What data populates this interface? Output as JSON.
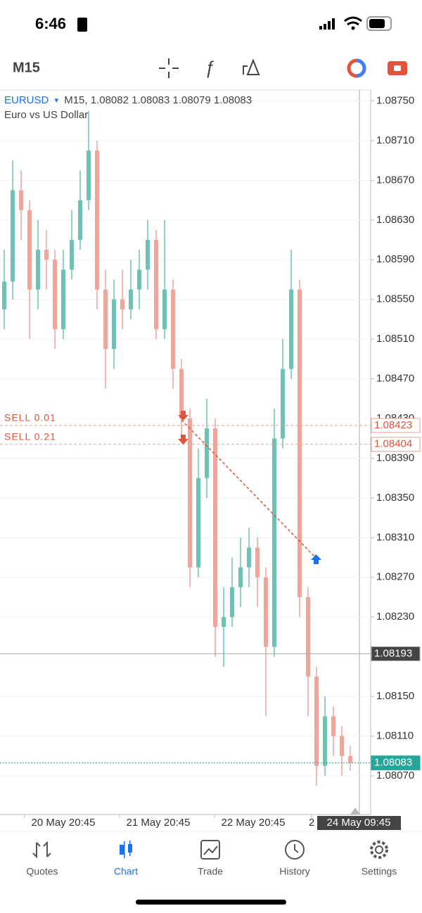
{
  "status_bar": {
    "time": "6:46"
  },
  "toolbar": {
    "timeframe": "M15"
  },
  "chart": {
    "symbol": "EURUSD",
    "symbol_menu": "▾",
    "quote_line": "M15, 1.08082 1.08083 1.08079 1.08083",
    "description": "Euro vs US Dollar",
    "ylim": [
      1.08031,
      1.08761
    ],
    "yticks": [
      {
        "value": 1.0875,
        "label": "1.08750"
      },
      {
        "value": 1.0871,
        "label": "1.08710"
      },
      {
        "value": 1.0867,
        "label": "1.08670"
      },
      {
        "value": 1.0863,
        "label": "1.08630"
      },
      {
        "value": 1.0859,
        "label": "1.08590"
      },
      {
        "value": 1.0855,
        "label": "1.08550"
      },
      {
        "value": 1.0851,
        "label": "1.08510"
      },
      {
        "value": 1.0847,
        "label": "1.08470"
      },
      {
        "value": 1.0843,
        "label": "1.08430"
      },
      {
        "value": 1.0839,
        "label": "1.08390"
      },
      {
        "value": 1.0835,
        "label": "1.08350"
      },
      {
        "value": 1.0831,
        "label": "1.08310"
      },
      {
        "value": 1.0827,
        "label": "1.08270"
      },
      {
        "value": 1.0823,
        "label": "1.08230"
      },
      {
        "value": 1.0815,
        "label": "1.08150"
      },
      {
        "value": 1.0811,
        "label": "1.08110"
      },
      {
        "value": 1.0807,
        "label": "1.08070"
      }
    ],
    "orders": [
      {
        "label": "SELL 0.01",
        "price": {
          "value": 1.08423,
          "label": "1.08423"
        }
      },
      {
        "label": "SELL 0.21",
        "price": {
          "value": 1.08404,
          "label": "1.08404"
        }
      }
    ],
    "crosshair_price": {
      "value": 1.08193,
      "label": "1.08193"
    },
    "bid_price": {
      "value": 1.08083,
      "label": "1.08083"
    },
    "x_labels": [
      "20 May 20:45",
      "21 May 20:45",
      "22 May 20:45",
      "2"
    ],
    "current_time": "24 May 09:45",
    "candles": [
      [
        1.0854,
        1.086,
        1.0852,
        1.08568
      ],
      [
        1.08568,
        1.0869,
        1.0855,
        1.0866
      ],
      [
        1.0866,
        1.0868,
        1.0861,
        1.0864
      ],
      [
        1.0864,
        1.0865,
        1.0851,
        1.0856
      ],
      [
        1.0856,
        1.0863,
        1.0854,
        1.086
      ],
      [
        1.086,
        1.0862,
        1.0856,
        1.0859
      ],
      [
        1.0859,
        1.086,
        1.085,
        1.0852
      ],
      [
        1.0852,
        1.086,
        1.0851,
        1.0858
      ],
      [
        1.0858,
        1.0864,
        1.0857,
        1.0861
      ],
      [
        1.0861,
        1.0868,
        1.086,
        1.0865
      ],
      [
        1.0865,
        1.0874,
        1.0864,
        1.087
      ],
      [
        1.087,
        1.0871,
        1.0854,
        1.0856
      ],
      [
        1.0856,
        1.0858,
        1.0846,
        1.085
      ],
      [
        1.085,
        1.0857,
        1.0848,
        1.0855
      ],
      [
        1.0855,
        1.0858,
        1.0852,
        1.0854
      ],
      [
        1.0854,
        1.0859,
        1.0853,
        1.0856
      ],
      [
        1.0856,
        1.086,
        1.0854,
        1.0858
      ],
      [
        1.0858,
        1.0863,
        1.0856,
        1.0861
      ],
      [
        1.0861,
        1.0862,
        1.0851,
        1.0852
      ],
      [
        1.0852,
        1.0863,
        1.0851,
        1.0856
      ],
      [
        1.0856,
        1.0857,
        1.0846,
        1.0848
      ],
      [
        1.0848,
        1.0849,
        1.0841,
        1.0843
      ],
      [
        1.0843,
        1.0844,
        1.0826,
        1.0828
      ],
      [
        1.0828,
        1.084,
        1.0827,
        1.0837
      ],
      [
        1.0837,
        1.0845,
        1.0835,
        1.0842
      ],
      [
        1.0842,
        1.0843,
        1.0819,
        1.0822
      ],
      [
        1.0822,
        1.0826,
        1.0818,
        1.0823
      ],
      [
        1.0823,
        1.0829,
        1.0822,
        1.0826
      ],
      [
        1.0826,
        1.0831,
        1.0824,
        1.0828
      ],
      [
        1.0828,
        1.0832,
        1.0826,
        1.083
      ],
      [
        1.083,
        1.0831,
        1.0824,
        1.0827
      ],
      [
        1.0827,
        1.0828,
        1.0813,
        1.082
      ],
      [
        1.082,
        1.0844,
        1.0819,
        1.0841
      ],
      [
        1.0841,
        1.0851,
        1.084,
        1.0848
      ],
      [
        1.0848,
        1.086,
        1.0847,
        1.0856
      ],
      [
        1.0856,
        1.0857,
        1.0823,
        1.0825
      ],
      [
        1.0825,
        1.0826,
        1.0813,
        1.0817
      ],
      [
        1.0817,
        1.0818,
        1.0806,
        1.0808
      ],
      [
        1.0808,
        1.0815,
        1.0807,
        1.0813
      ],
      [
        1.0813,
        1.0814,
        1.0809,
        1.0811
      ],
      [
        1.0811,
        1.0812,
        1.0807,
        1.0809
      ],
      [
        1.0809,
        1.081,
        1.08075,
        1.08083
      ]
    ]
  },
  "tabs": [
    "Quotes",
    "Chart",
    "Trade",
    "History",
    "Settings"
  ]
}
